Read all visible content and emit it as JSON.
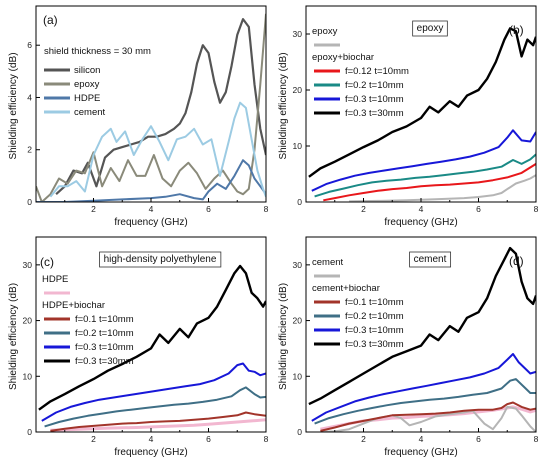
{
  "chart_data": [
    {
      "type": "line",
      "panel_label": "(a)",
      "title": "",
      "xlabel": "frequency (GHz)",
      "ylabel": "Shielding efficiency  (dB)",
      "xlim": [
        0,
        8
      ],
      "ylim": [
        0,
        7.5
      ],
      "xticks": [
        2,
        4,
        6,
        8
      ],
      "yticks": [
        0,
        2,
        4,
        6
      ],
      "legend_header": "shield thickness = 30 mm",
      "series": [
        {
          "name": "silicon",
          "color": "#555555",
          "lw": 2.2,
          "x": [
            0.7,
            1.0,
            1.3,
            1.6,
            1.8,
            2.1,
            2.4,
            2.7,
            3.0,
            3.3,
            3.6,
            3.9,
            4.2,
            4.5,
            4.8,
            5.0,
            5.2,
            5.4,
            5.6,
            5.8,
            6.0,
            6.2,
            6.4,
            6.6,
            6.8,
            7.0,
            7.2,
            7.4,
            7.6,
            7.8,
            8.0
          ],
          "y": [
            0.3,
            0.6,
            1.2,
            1.1,
            1.5,
            0.6,
            1.7,
            2.0,
            2.1,
            2.2,
            2.3,
            2.5,
            2.5,
            2.6,
            2.8,
            3.0,
            3.4,
            4.2,
            5.3,
            6.0,
            5.7,
            4.6,
            3.8,
            4.2,
            5.2,
            6.4,
            7.0,
            6.7,
            4.5,
            2.8,
            1.8
          ]
        },
        {
          "name": "epoxy",
          "color": "#8a8a7a",
          "lw": 2.0,
          "x": [
            0.0,
            0.2,
            0.5,
            0.8,
            1.1,
            1.4,
            1.7,
            2.0,
            2.3,
            2.6,
            2.9,
            3.2,
            3.5,
            3.8,
            4.1,
            4.4,
            4.7,
            5.0,
            5.3,
            5.6,
            5.9,
            6.2,
            6.5,
            6.8,
            7.0,
            7.2,
            7.4,
            7.6,
            7.8,
            8.0
          ],
          "y": [
            0.6,
            0.0,
            0.3,
            0.9,
            0.7,
            1.2,
            1.1,
            1.9,
            0.6,
            1.3,
            0.8,
            1.6,
            1.0,
            1.0,
            1.8,
            0.9,
            0.6,
            1.2,
            1.5,
            1.1,
            0.5,
            0.9,
            1.2,
            0.7,
            0.4,
            0.3,
            0.5,
            2.0,
            4.5,
            7.2
          ]
        },
        {
          "name": "HDPE",
          "color": "#4f78a8",
          "lw": 2.0,
          "x": [
            0.0,
            1.0,
            2.0,
            3.0,
            4.0,
            4.5,
            5.0,
            5.5,
            5.8,
            6.0,
            6.3,
            6.6,
            6.9,
            7.2,
            7.4,
            7.6,
            7.8,
            8.0
          ],
          "y": [
            0.0,
            0.0,
            0.05,
            0.1,
            0.15,
            0.2,
            0.3,
            0.15,
            0.1,
            0.4,
            0.7,
            0.5,
            1.0,
            1.6,
            1.4,
            0.9,
            0.6,
            0.3
          ]
        },
        {
          "name": "cement",
          "color": "#9ccbe3",
          "lw": 2.0,
          "x": [
            0.5,
            0.8,
            1.1,
            1.4,
            1.7,
            2.0,
            2.3,
            2.6,
            2.8,
            3.1,
            3.4,
            3.7,
            4.0,
            4.3,
            4.6,
            4.9,
            5.2,
            5.5,
            5.8,
            6.1,
            6.4,
            6.7,
            6.9,
            7.1,
            7.3,
            7.5,
            7.7,
            7.9,
            8.0
          ],
          "y": [
            0.2,
            0.6,
            0.6,
            0.8,
            0.4,
            1.8,
            2.5,
            2.8,
            2.3,
            2.7,
            1.8,
            2.4,
            2.9,
            2.3,
            1.6,
            2.4,
            2.5,
            2.8,
            2.2,
            2.4,
            1.0,
            2.3,
            3.2,
            3.8,
            3.6,
            2.4,
            1.2,
            0.5,
            0.2
          ]
        }
      ]
    },
    {
      "type": "line",
      "panel_label": "(b)",
      "title": "epoxy",
      "xlabel": "frequency (GHz)",
      "ylabel": "Shielding efficiency  (dB)",
      "xlim": [
        0,
        8
      ],
      "ylim": [
        0,
        35
      ],
      "xticks": [
        2,
        4,
        6,
        8
      ],
      "yticks": [
        0,
        10,
        20,
        30
      ],
      "legend_top": "epoxy",
      "legend_header": "epoxy+biochar",
      "series": [
        {
          "name": "",
          "color": "#b5b5b5",
          "lw": 2.0,
          "x": [
            1.5,
            2.5,
            3.5,
            4.5,
            5.5,
            6.0,
            6.5,
            6.8,
            7.0,
            7.3,
            7.6,
            7.8,
            8.0
          ],
          "y": [
            0.1,
            0.2,
            0.3,
            0.5,
            0.7,
            0.9,
            1.2,
            1.6,
            2.3,
            3.3,
            3.8,
            4.2,
            4.8
          ]
        },
        {
          "name": "f=0.12 t=10mm",
          "color": "#e8171b",
          "lw": 2.0,
          "x": [
            0.6,
            1.0,
            1.5,
            2.0,
            2.5,
            3.0,
            3.5,
            4.0,
            4.5,
            5.0,
            5.5,
            6.0,
            6.5,
            7.0,
            7.5,
            8.0
          ],
          "y": [
            0.3,
            0.7,
            1.2,
            1.6,
            2.0,
            2.3,
            2.5,
            2.8,
            3.0,
            3.1,
            3.3,
            3.5,
            3.9,
            4.4,
            5.2,
            6.8
          ]
        },
        {
          "name": "f=0.2 t=10mm",
          "color": "#1a8a86",
          "lw": 2.0,
          "x": [
            0.3,
            0.8,
            1.3,
            1.8,
            2.3,
            2.8,
            3.3,
            3.8,
            4.3,
            4.8,
            5.3,
            5.8,
            6.3,
            6.8,
            7.2,
            7.5,
            7.8,
            8.0
          ],
          "y": [
            1.0,
            1.8,
            2.4,
            3.0,
            3.5,
            3.8,
            4.0,
            4.3,
            4.5,
            4.8,
            5.1,
            5.4,
            5.8,
            6.3,
            7.5,
            6.8,
            7.6,
            8.5
          ]
        },
        {
          "name": "f=0.3 t=10mm",
          "color": "#1717d8",
          "lw": 2.0,
          "x": [
            0.2,
            0.7,
            1.2,
            1.7,
            2.2,
            2.7,
            3.2,
            3.7,
            4.2,
            4.7,
            5.2,
            5.7,
            6.2,
            6.7,
            7.0,
            7.2,
            7.5,
            7.8,
            8.0
          ],
          "y": [
            2.0,
            3.2,
            4.0,
            4.7,
            5.2,
            5.6,
            6.0,
            6.4,
            6.8,
            7.2,
            7.6,
            8.1,
            8.8,
            9.8,
            11.5,
            12.8,
            11.0,
            10.8,
            12.5
          ]
        },
        {
          "name": "f=0.3 t=30mm",
          "color": "#000000",
          "lw": 2.4,
          "x": [
            0.1,
            0.5,
            1.0,
            1.5,
            2.0,
            2.5,
            3.0,
            3.5,
            4.0,
            4.3,
            4.6,
            5.0,
            5.3,
            5.6,
            6.0,
            6.3,
            6.6,
            6.9,
            7.1,
            7.3,
            7.5,
            7.7,
            7.9,
            8.0
          ],
          "y": [
            4.5,
            6.0,
            7.2,
            8.5,
            9.8,
            11.0,
            12.5,
            13.5,
            15.0,
            17.0,
            16.0,
            18.0,
            17.0,
            19.0,
            20.0,
            22.0,
            25.0,
            29.0,
            31.0,
            30.5,
            26.0,
            29.0,
            28.0,
            29.5
          ]
        }
      ]
    },
    {
      "type": "line",
      "panel_label": "(c)",
      "title": "high-density polyethylene",
      "xlabel": "frequency (GHz)",
      "ylabel": "Shielding efficiency  (dB)",
      "xlim": [
        0,
        8
      ],
      "ylim": [
        0,
        35
      ],
      "xticks": [
        2,
        4,
        6,
        8
      ],
      "yticks": [
        0,
        10,
        20,
        30
      ],
      "legend_top": "HDPE",
      "legend_header": "HDPE+biochar",
      "series": [
        {
          "name": "",
          "color": "#f2b7d0",
          "lw": 3.0,
          "x": [
            0.5,
            1.5,
            2.5,
            3.5,
            4.5,
            5.5,
            6.0,
            6.5,
            7.0,
            7.5,
            8.0
          ],
          "y": [
            0.3,
            0.5,
            0.7,
            0.8,
            1.0,
            1.2,
            1.4,
            1.6,
            1.8,
            2.0,
            2.2
          ]
        },
        {
          "name": "f=0.1 t=10mm",
          "color": "#a2342a",
          "lw": 2.0,
          "x": [
            0.5,
            1.0,
            1.5,
            2.0,
            2.5,
            3.0,
            3.5,
            4.0,
            4.5,
            5.0,
            5.5,
            6.0,
            6.5,
            7.0,
            7.3,
            7.6,
            8.0
          ],
          "y": [
            0.2,
            0.6,
            0.9,
            1.1,
            1.3,
            1.5,
            1.6,
            1.8,
            1.9,
            2.0,
            2.2,
            2.4,
            2.7,
            3.0,
            3.5,
            3.2,
            2.9
          ]
        },
        {
          "name": "f=0.2 t=10mm",
          "color": "#3f6f86",
          "lw": 2.0,
          "x": [
            0.3,
            0.8,
            1.3,
            1.8,
            2.3,
            2.8,
            3.3,
            3.8,
            4.3,
            4.8,
            5.3,
            5.8,
            6.3,
            6.8,
            7.1,
            7.3,
            7.6,
            7.8,
            8.0
          ],
          "y": [
            1.0,
            1.8,
            2.4,
            2.9,
            3.3,
            3.7,
            4.0,
            4.3,
            4.6,
            4.9,
            5.1,
            5.4,
            5.8,
            6.4,
            7.5,
            8.0,
            6.8,
            6.2,
            6.3
          ]
        },
        {
          "name": "f=0.3 t=10mm",
          "color": "#1717d8",
          "lw": 2.0,
          "x": [
            0.2,
            0.7,
            1.2,
            1.7,
            2.2,
            2.7,
            3.2,
            3.7,
            4.2,
            4.7,
            5.2,
            5.7,
            6.2,
            6.7,
            7.0,
            7.2,
            7.4,
            7.6,
            7.8,
            8.0
          ],
          "y": [
            2.0,
            3.5,
            4.5,
            5.2,
            5.8,
            6.2,
            6.6,
            7.0,
            7.4,
            7.8,
            8.2,
            8.6,
            9.3,
            10.5,
            12.0,
            12.3,
            11.0,
            10.8,
            10.2,
            10.5
          ]
        },
        {
          "name": "f=0.3 t=30mm",
          "color": "#000000",
          "lw": 2.4,
          "x": [
            0.1,
            0.5,
            1.0,
            1.5,
            2.0,
            2.5,
            3.0,
            3.5,
            4.0,
            4.3,
            4.6,
            5.0,
            5.3,
            5.6,
            6.0,
            6.3,
            6.6,
            6.9,
            7.1,
            7.3,
            7.5,
            7.7,
            7.9,
            8.0
          ],
          "y": [
            4.0,
            5.5,
            6.8,
            8.2,
            9.5,
            11.0,
            12.2,
            13.5,
            15.0,
            17.5,
            16.0,
            18.5,
            17.0,
            19.5,
            20.5,
            22.5,
            25.5,
            28.5,
            29.8,
            28.5,
            25.0,
            24.0,
            22.5,
            23.5
          ]
        }
      ]
    },
    {
      "type": "line",
      "panel_label": "(d)",
      "title": "cement",
      "xlabel": "frequency (GHz)",
      "ylabel": "Shielding efficiency  (dB)",
      "xlim": [
        0,
        8
      ],
      "ylim": [
        0,
        35
      ],
      "xticks": [
        2,
        4,
        6,
        8
      ],
      "yticks": [
        0,
        10,
        20,
        30
      ],
      "legend_top": "cement",
      "legend_header": "cement+biochar",
      "series": [
        {
          "name": "",
          "color": "#f2b7d0",
          "lw": 3.0,
          "x": [
            0.5,
            1.0,
            1.5,
            2.0,
            2.5,
            3.0,
            3.5,
            4.0,
            4.5,
            5.0,
            5.5,
            6.0,
            6.5,
            7.0,
            7.2,
            7.5,
            7.8,
            8.0
          ],
          "y": [
            0.5,
            1.0,
            1.5,
            2.0,
            2.2,
            2.5,
            2.6,
            2.8,
            2.9,
            3.1,
            3.3,
            3.6,
            3.9,
            4.3,
            4.5,
            4.1,
            3.6,
            3.9
          ]
        },
        {
          "name": "",
          "color": "#b5b5b5",
          "lw": 2.0,
          "x": [
            0.5,
            1.0,
            1.5,
            2.0,
            2.5,
            3.0,
            3.3,
            3.6,
            4.0,
            4.5,
            5.0,
            5.5,
            5.8,
            6.2,
            6.5,
            6.8,
            7.0,
            7.3,
            7.5,
            7.8,
            8.0
          ],
          "y": [
            0.0,
            0.1,
            0.5,
            1.5,
            2.5,
            3.0,
            2.5,
            1.2,
            1.8,
            2.8,
            3.2,
            3.5,
            3.8,
            1.5,
            0.5,
            2.5,
            4.5,
            4.2,
            3.0,
            1.0,
            0.0
          ]
        },
        {
          "name": "f=0.1 t=10mm",
          "color": "#a2342a",
          "lw": 2.0,
          "x": [
            0.5,
            1.0,
            1.5,
            2.0,
            2.5,
            3.0,
            3.5,
            4.0,
            4.5,
            5.0,
            5.5,
            6.0,
            6.5,
            6.8,
            7.0,
            7.2,
            7.5,
            7.8,
            8.0
          ],
          "y": [
            0.2,
            0.8,
            1.5,
            2.0,
            2.5,
            3.0,
            3.1,
            3.2,
            3.3,
            3.5,
            3.8,
            4.0,
            4.0,
            4.3,
            5.0,
            5.3,
            4.5,
            4.0,
            4.2
          ]
        },
        {
          "name": "f=0.2 t=10mm",
          "color": "#3f6f86",
          "lw": 2.0,
          "x": [
            0.3,
            0.8,
            1.3,
            1.8,
            2.3,
            2.8,
            3.3,
            3.8,
            4.3,
            4.8,
            5.3,
            5.8,
            6.3,
            6.8,
            7.1,
            7.3,
            7.6,
            7.8,
            8.0
          ],
          "y": [
            1.5,
            2.5,
            3.2,
            3.8,
            4.3,
            4.8,
            5.2,
            5.5,
            5.8,
            6.0,
            6.3,
            6.7,
            7.0,
            7.8,
            9.2,
            9.5,
            8.0,
            7.0,
            7.0
          ]
        },
        {
          "name": "f=0.3 t=10mm",
          "color": "#1717d8",
          "lw": 2.0,
          "x": [
            0.2,
            0.7,
            1.2,
            1.7,
            2.2,
            2.7,
            3.2,
            3.7,
            4.2,
            4.7,
            5.2,
            5.7,
            6.2,
            6.7,
            7.0,
            7.2,
            7.4,
            7.6,
            7.8,
            8.0
          ],
          "y": [
            2.0,
            3.5,
            4.5,
            5.5,
            6.2,
            6.8,
            7.3,
            7.8,
            8.3,
            8.8,
            9.3,
            9.8,
            10.5,
            11.5,
            13.0,
            14.0,
            12.5,
            11.5,
            10.5,
            10.8
          ]
        },
        {
          "name": "f=0.3 t=30mm",
          "color": "#000000",
          "lw": 2.4,
          "x": [
            0.1,
            0.5,
            1.0,
            1.5,
            2.0,
            2.5,
            3.0,
            3.5,
            4.0,
            4.3,
            4.6,
            5.0,
            5.3,
            5.6,
            6.0,
            6.3,
            6.6,
            6.9,
            7.1,
            7.3,
            7.5,
            7.7,
            7.9,
            8.0
          ],
          "y": [
            5.0,
            6.0,
            7.5,
            9.0,
            10.5,
            12.0,
            13.5,
            14.5,
            15.5,
            17.5,
            16.5,
            19.0,
            18.0,
            20.5,
            21.5,
            24.0,
            28.0,
            31.0,
            33.0,
            32.0,
            27.0,
            24.0,
            23.0,
            24.5
          ]
        }
      ]
    }
  ]
}
